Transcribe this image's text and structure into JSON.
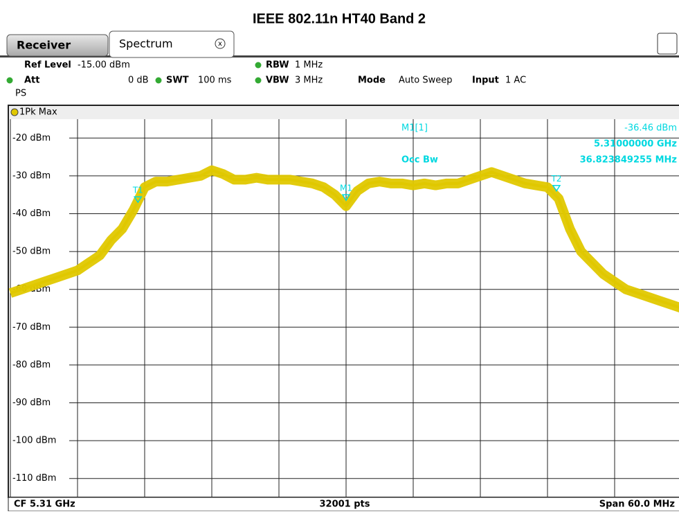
{
  "header": {
    "title": "IEEE 802.11n HT40 Band 2"
  },
  "tabs": [
    "Receiver",
    "Spectrum"
  ],
  "settings": {
    "ref_level": {
      "label": "Ref Level",
      "value": "-15.00 dBm"
    },
    "att": {
      "label": "Att",
      "value": "0 dB"
    },
    "swt": {
      "label": "SWT",
      "value": "100 ms"
    },
    "rbw": {
      "label": "RBW",
      "value": "1 MHz"
    },
    "vbw": {
      "label": "VBW",
      "value": "3 MHz"
    },
    "mode": {
      "label": "Mode",
      "value": "Auto Sweep"
    },
    "input": {
      "label": "Input",
      "value": "1 AC"
    },
    "ps": "PS"
  },
  "trace_label": "1Pk Max",
  "readout": {
    "marker": "M1[1]",
    "level": "-36.46 dBm",
    "freq": "5.31000000 GHz",
    "occ_label": "Occ Bw",
    "occ_value": "36.823849255 MHz"
  },
  "footer": {
    "cf": "CF 5.31 GHz",
    "pts": "32001 pts",
    "span": "Span 60.0 MHz"
  },
  "chart_data": {
    "type": "line",
    "xlim": [
      5280,
      5340
    ],
    "xticks": [
      5280,
      5286,
      5292,
      5298,
      5304,
      5310,
      5316,
      5322,
      5328,
      5334,
      5340
    ],
    "ylim": [
      -115,
      -15
    ],
    "yticks": [
      {
        "value": -20,
        "label": "-20 dBm"
      },
      {
        "value": -30,
        "label": "-30 dBm"
      },
      {
        "value": -40,
        "label": "-40 dBm"
      },
      {
        "value": -50,
        "label": "-50 dBm"
      },
      {
        "value": -60,
        "label": "-60 dBm"
      },
      {
        "value": -70,
        "label": "-70 dBm"
      },
      {
        "value": -80,
        "label": "-80 dBm"
      },
      {
        "value": -90,
        "label": "-90 dBm"
      },
      {
        "value": -100,
        "label": "-100 dBm"
      },
      {
        "value": -110,
        "label": "-110 dBm"
      }
    ],
    "grid": true,
    "series": [
      {
        "name": "1Pk Max",
        "color": "#e0c800",
        "x": [
          5280,
          5281,
          5282,
          5283,
          5284,
          5285,
          5286,
          5287,
          5288,
          5289,
          5290,
          5291,
          5292,
          5293,
          5294,
          5295,
          5296,
          5297,
          5298,
          5299,
          5300,
          5301,
          5302,
          5303,
          5304,
          5305,
          5306,
          5307,
          5308,
          5309,
          5310,
          5311,
          5312,
          5313,
          5314,
          5315,
          5316,
          5317,
          5318,
          5319,
          5320,
          5321,
          5322,
          5323,
          5324,
          5325,
          5326,
          5327,
          5328,
          5329,
          5330,
          5331,
          5332,
          5333,
          5334,
          5335,
          5336,
          5337,
          5338,
          5339,
          5340
        ],
        "values": [
          -61,
          -60,
          -59,
          -58,
          -57,
          -56,
          -55,
          -53,
          -51,
          -47,
          -44,
          -39,
          -33,
          -31.5,
          -31.5,
          -31,
          -30.5,
          -30,
          -28.5,
          -29.5,
          -31,
          -31,
          -30.5,
          -31,
          -31,
          -31,
          -31.5,
          -32,
          -33,
          -35,
          -38,
          -34,
          -32,
          -31.5,
          -32,
          -32,
          -32.5,
          -32,
          -32.5,
          -32,
          -32,
          -31,
          -30,
          -29,
          -30,
          -31,
          -32,
          -32.5,
          -33,
          -36,
          -44,
          -50,
          -53,
          -56,
          -58,
          -60,
          -61,
          -62,
          -63,
          -64,
          -65
        ]
      }
    ],
    "markers": [
      {
        "name": "T1",
        "x": 5291.4,
        "y": -37
      },
      {
        "name": "M1",
        "x": 5310,
        "y": -36.46
      },
      {
        "name": "T2",
        "x": 5328.8,
        "y": -34
      }
    ]
  }
}
